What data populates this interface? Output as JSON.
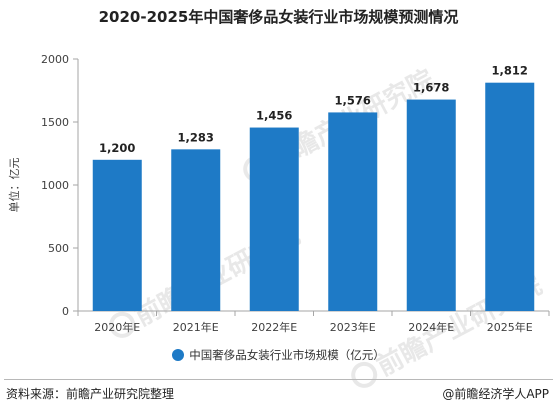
{
  "chart_data": {
    "type": "bar",
    "title": "2020-2025年中国奢侈品女装行业市场规模预测情况",
    "ylabel": "单位：亿元",
    "categories": [
      "2020年E",
      "2021年E",
      "2022年E",
      "2023年E",
      "2024年E",
      "2025年E"
    ],
    "values": [
      1200,
      1283,
      1456,
      1576,
      1678,
      1812
    ],
    "value_labels": [
      "1,200",
      "1,283",
      "1,456",
      "1,576",
      "1,678",
      "1,812"
    ],
    "ylim": [
      0,
      2000
    ],
    "yticks": [
      0,
      500,
      1000,
      1500,
      2000
    ],
    "ytick_labels": [
      "0",
      "500",
      "1000",
      "1500",
      "2000"
    ],
    "grid": false,
    "legend_position": "bottom",
    "series": [
      {
        "name": "中国奢侈品女装行业市场规模（亿元）",
        "color": "#1e7ac6"
      }
    ]
  },
  "footer": {
    "source": "资料来源：前瞻产业研究院整理",
    "brand": "@前瞻经济学人APP"
  },
  "watermark": {
    "text": "前瞻产业研究院",
    "icon": "qianzhan-logo-icon"
  }
}
